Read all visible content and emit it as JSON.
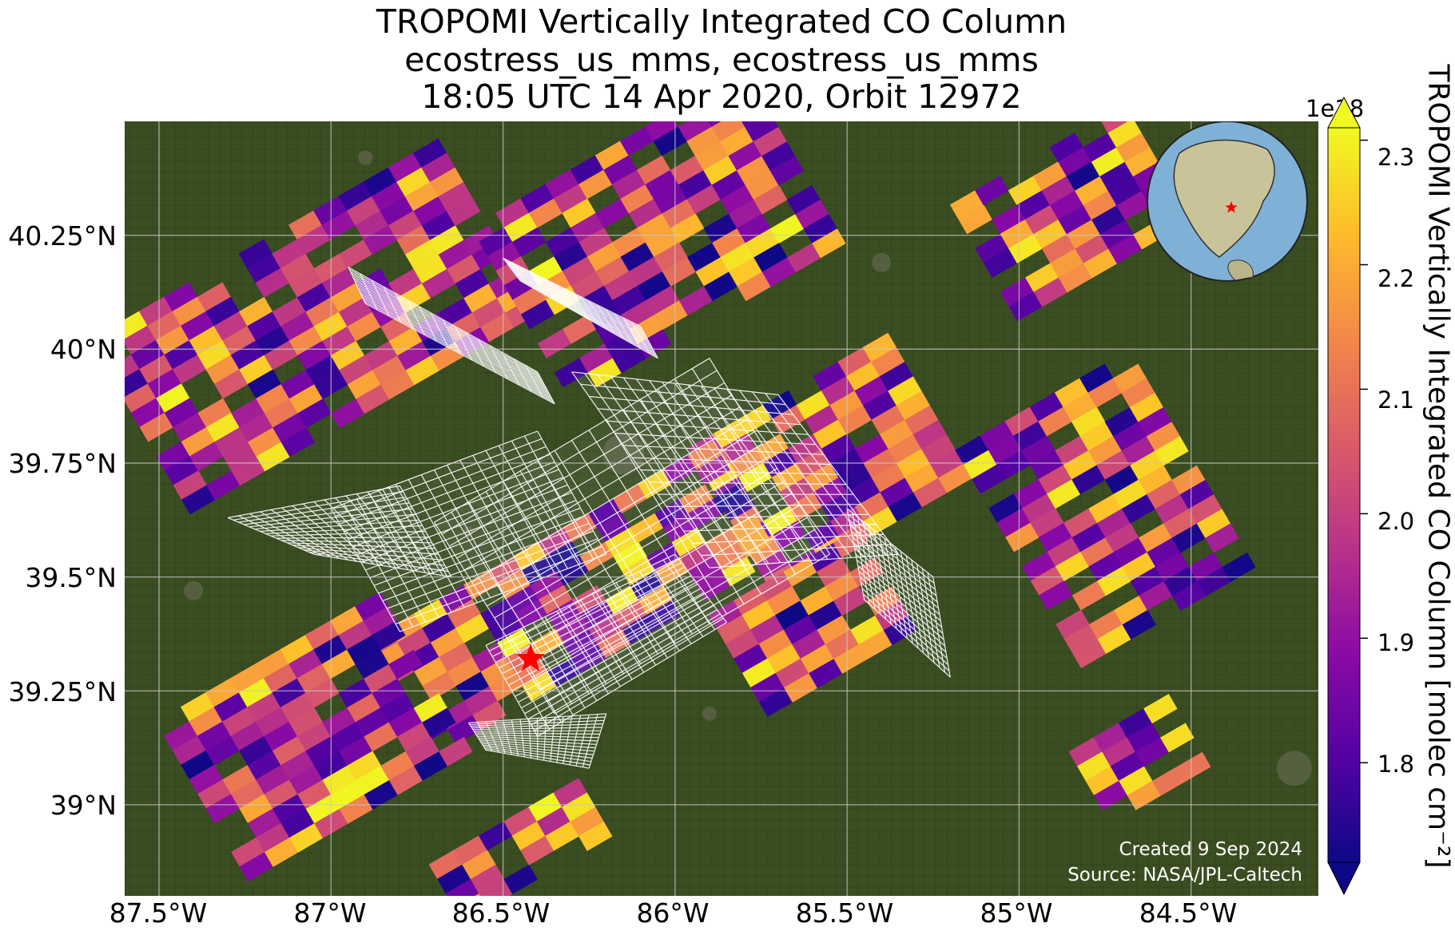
{
  "title": {
    "line1": "TROPOMI Vertically Integrated CO Column",
    "line2": "ecostress_us_mms, ecostress_us_mms",
    "line3": "18:05 UTC 14 Apr 2020, Orbit 12972"
  },
  "map": {
    "type": "swath-map",
    "lon_range": [
      -87.6,
      -84.13
    ],
    "lat_range": [
      38.8,
      40.5
    ],
    "lat_ticks": [
      "40.25°N",
      "40°N",
      "39.75°N",
      "39.5°N",
      "39.25°N",
      "39°N"
    ],
    "lat_values": [
      40.25,
      40.0,
      39.75,
      39.5,
      39.25,
      39.0
    ],
    "lon_ticks": [
      "87.5°W",
      "87°W",
      "86.5°W",
      "86°W",
      "85.5°W",
      "85°W",
      "84.5°W"
    ],
    "lon_values": [
      -87.5,
      -87.0,
      -86.5,
      -86.0,
      -85.5,
      -85.0,
      -84.5
    ],
    "gridlines": true,
    "basemap": "satellite-imagery",
    "target_marker": {
      "icon": "red-star-icon",
      "lon": -86.42,
      "lat": 39.32,
      "color": "#ff0000"
    },
    "inset_globe": {
      "icon": "globe-inset-icon",
      "marker": "red-star-icon",
      "placement": "top-right"
    },
    "credit_line1": "Created 9 Sep 2024",
    "credit_line2": "Source: NASA/JPL-Caltech"
  },
  "colorbar": {
    "colormap": "plasma",
    "scale_label": "1e18",
    "label": "TROPOMI Vertically Integrated CO Column [molec cm⁻²]",
    "vmin": 1.72,
    "vmax": 2.31,
    "ticks": [
      "2.3",
      "2.2",
      "2.1",
      "2.0",
      "1.9",
      "1.8"
    ],
    "tick_values": [
      2.3,
      2.2,
      2.1,
      2.0,
      1.9,
      1.8
    ],
    "extend": "both"
  },
  "colors": {
    "star": "#ff0000",
    "footprint_outline": "#ffffff",
    "grid": "#c8c8c8"
  }
}
